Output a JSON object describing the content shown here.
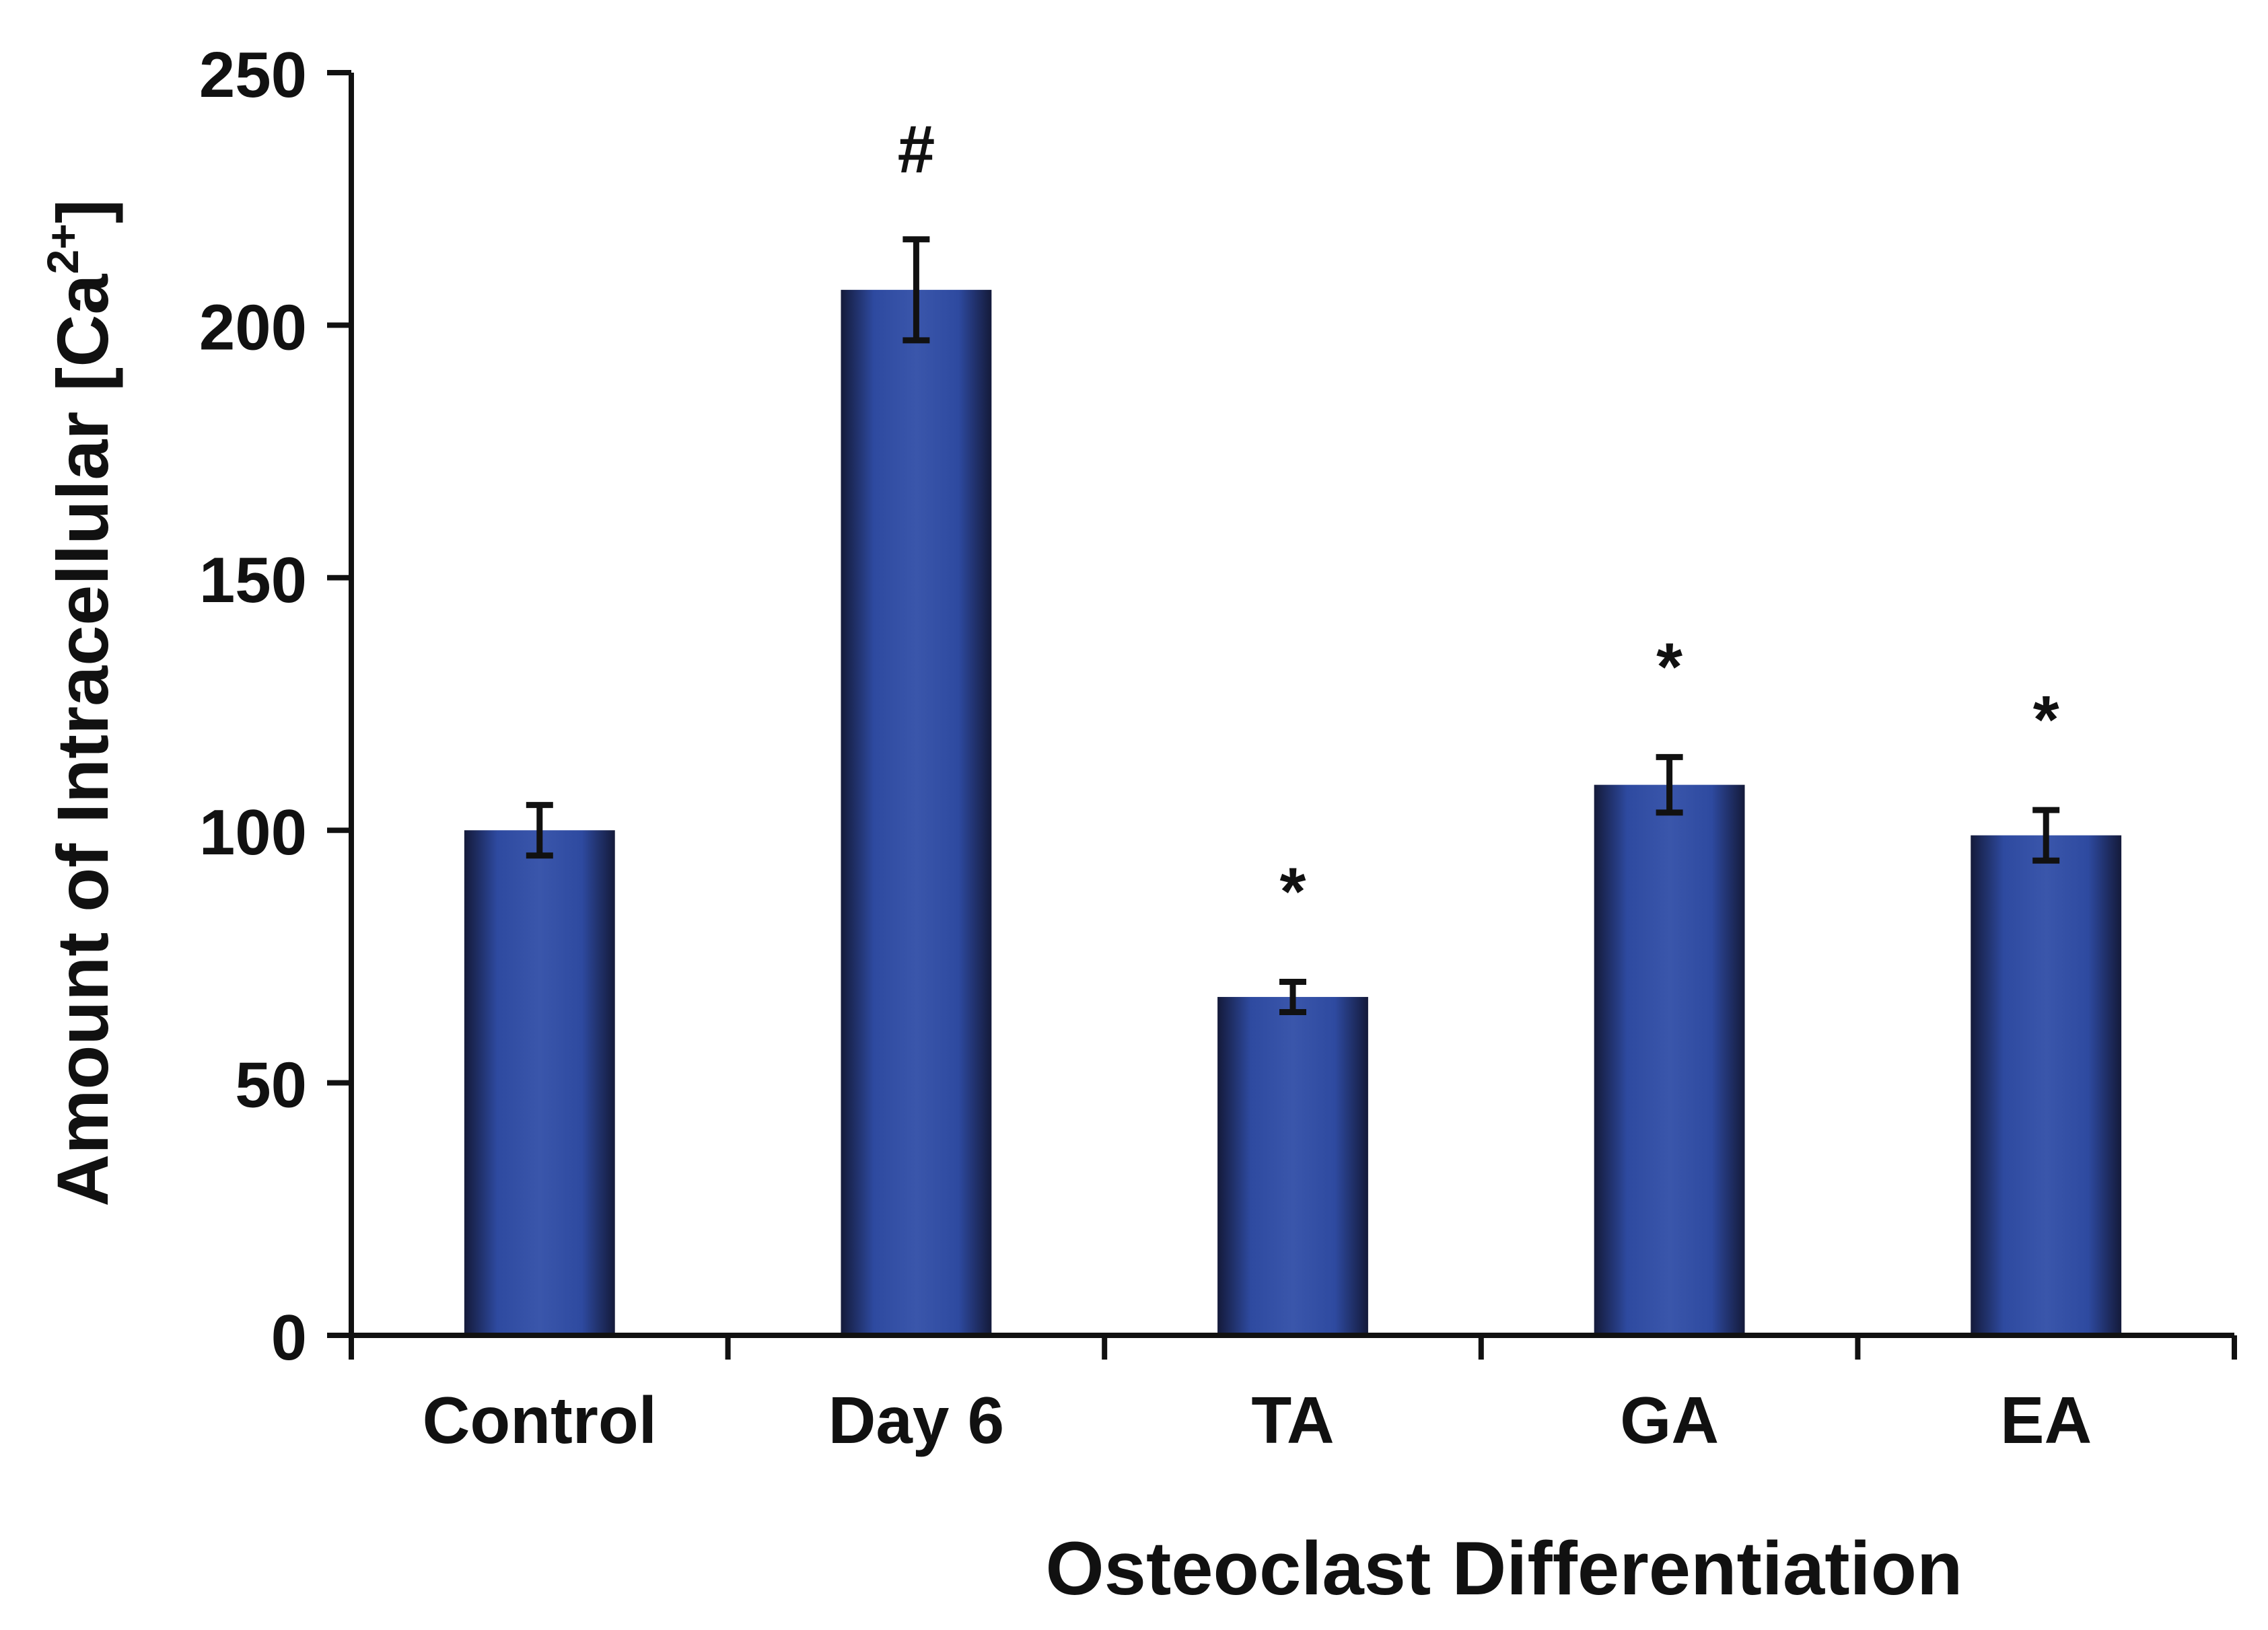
{
  "chart_data": {
    "type": "bar",
    "title": "",
    "ylabel_main": "Amount of Intracellular [Ca",
    "ylabel_sup": "2+",
    "ylabel_end": "]",
    "xlabel": "Osteoclast Differentiation",
    "categories": [
      "Control",
      "Day 6",
      "TA",
      "GA",
      "EA"
    ],
    "values": [
      100,
      207,
      67,
      109,
      99
    ],
    "errors": [
      5,
      10,
      3,
      5.5,
      5
    ],
    "annotations": [
      "",
      "#",
      "*",
      "*",
      "*"
    ],
    "ylim": [
      0,
      250
    ],
    "yticks": [
      "0",
      "50",
      "100",
      "150",
      "200",
      "250"
    ],
    "bar_color": "#2e4aa0",
    "bar_edge_color": "#141a3a"
  }
}
